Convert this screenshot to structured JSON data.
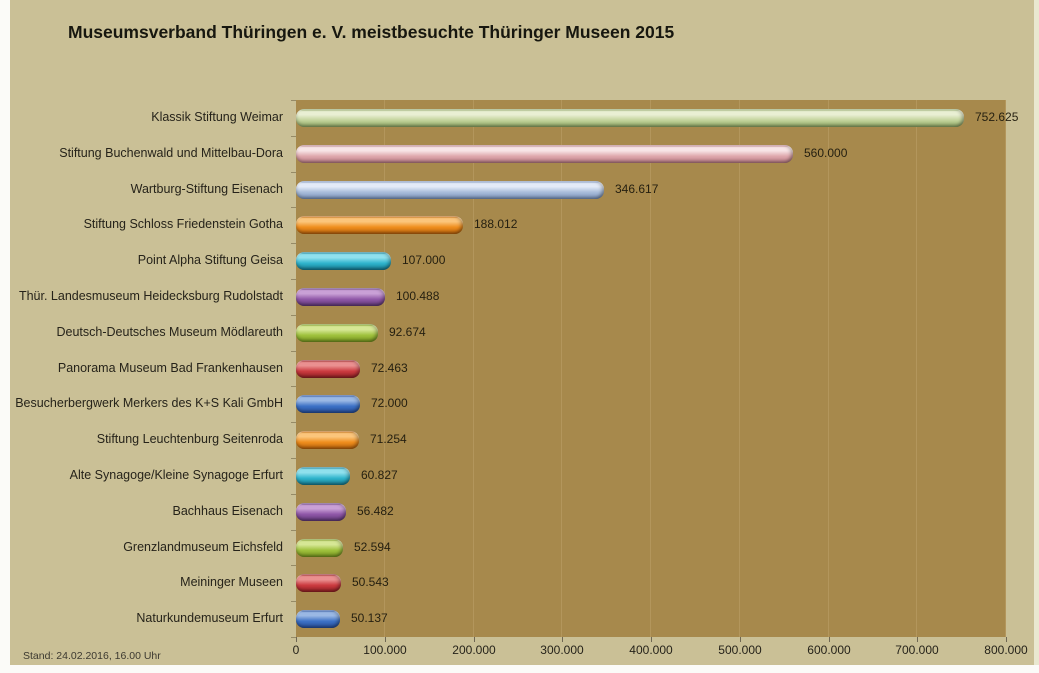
{
  "page": {
    "footer_stand": "Stand: 24.02.2016, 16.00 Uhr"
  },
  "colors": {
    "page_background": "#fbfbf8",
    "chart_background": "#cac096",
    "right_border_strip": "#e9e8d0",
    "plot_background": "#a7894c",
    "gridline": "#b3965c",
    "axis_tick": "#6f6753",
    "title_text": "#17170f",
    "label_text": "#26231a",
    "value_text": "#241f10",
    "footer_text": "#3c3930"
  },
  "chart_data": {
    "type": "bar",
    "orientation": "horizontal",
    "title": "Museumsverband Thüringen e. V. meistbesuchte Thüringer Museen 2015",
    "footnote": "Stand: 24.02.2016, 16.00 Uhr",
    "xlabel": "",
    "ylabel": "",
    "xlim": [
      0,
      800000
    ],
    "x_tick_step": 100000,
    "x_tick_labels": [
      "0",
      "100.000",
      "200.000",
      "300.000",
      "400.000",
      "500.000",
      "600.000",
      "700.000",
      "800.000"
    ],
    "grid": "vertical gridlines every 100.000",
    "legend": "none",
    "categories": [
      "Klassik Stiftung Weimar",
      "Stiftung Buchenwald und Mittelbau-Dora",
      "Wartburg-Stiftung Eisenach",
      "Stiftung Schloss Friedenstein Gotha",
      "Point Alpha Stiftung Geisa",
      "Thür. Landesmuseum Heidecksburg Rudolstadt",
      "Deutsch-Deutsches Museum Mödlareuth",
      "Panorama Museum Bad Frankenhausen",
      "Besucherbergwerk Merkers des K+S Kali GmbH",
      "Stiftung Leuchtenburg Seitenroda",
      "Alte Synagoge/Kleine Synagoge Erfurt",
      "Bachhaus Eisenach",
      "Grenzlandmuseum Eichsfeld",
      "Meininger Museen",
      "Naturkundemuseum Erfurt"
    ],
    "values": [
      752625,
      560000,
      346617,
      188012,
      107000,
      100488,
      92674,
      72463,
      72000,
      71254,
      60827,
      56482,
      52594,
      50543,
      50137
    ],
    "value_labels": [
      "752.625",
      "560.000",
      "346.617",
      "188.012",
      "107.000",
      "100.488",
      "92.674",
      "72.463",
      "72.000",
      "71.254",
      "60.827",
      "56.482",
      "52.594",
      "50.543",
      "50.137"
    ],
    "bar_color_names": [
      "green",
      "pink",
      "steelblue",
      "orange",
      "cyan",
      "purple",
      "yellowgreen",
      "red",
      "blue",
      "orange",
      "cyan",
      "purple",
      "yellowgreen",
      "red",
      "blue"
    ],
    "palette": {
      "green": {
        "light": "#e9efd3",
        "base": "#c3d49c",
        "dark": "#93ad68"
      },
      "pink": {
        "light": "#f7e4e6",
        "base": "#dfa8ad",
        "dark": "#bf8089"
      },
      "steelblue": {
        "light": "#e3eaf7",
        "base": "#a9bdda",
        "dark": "#7f98c2"
      },
      "orange": {
        "light": "#fbc57b",
        "base": "#ef8e1e",
        "dark": "#bf660c"
      },
      "cyan": {
        "light": "#8fe0ed",
        "base": "#30b5cd",
        "dark": "#177f96"
      },
      "purple": {
        "light": "#c9a0d6",
        "base": "#9058a8",
        "dark": "#643a7c"
      },
      "yellowgreen": {
        "light": "#d6e795",
        "base": "#a0c23e",
        "dark": "#7a9a20"
      },
      "red": {
        "light": "#ea9090",
        "base": "#cc3b40",
        "dark": "#952125"
      },
      "blue": {
        "light": "#9ab8e4",
        "base": "#3d72c6",
        "dark": "#28509e"
      }
    }
  }
}
